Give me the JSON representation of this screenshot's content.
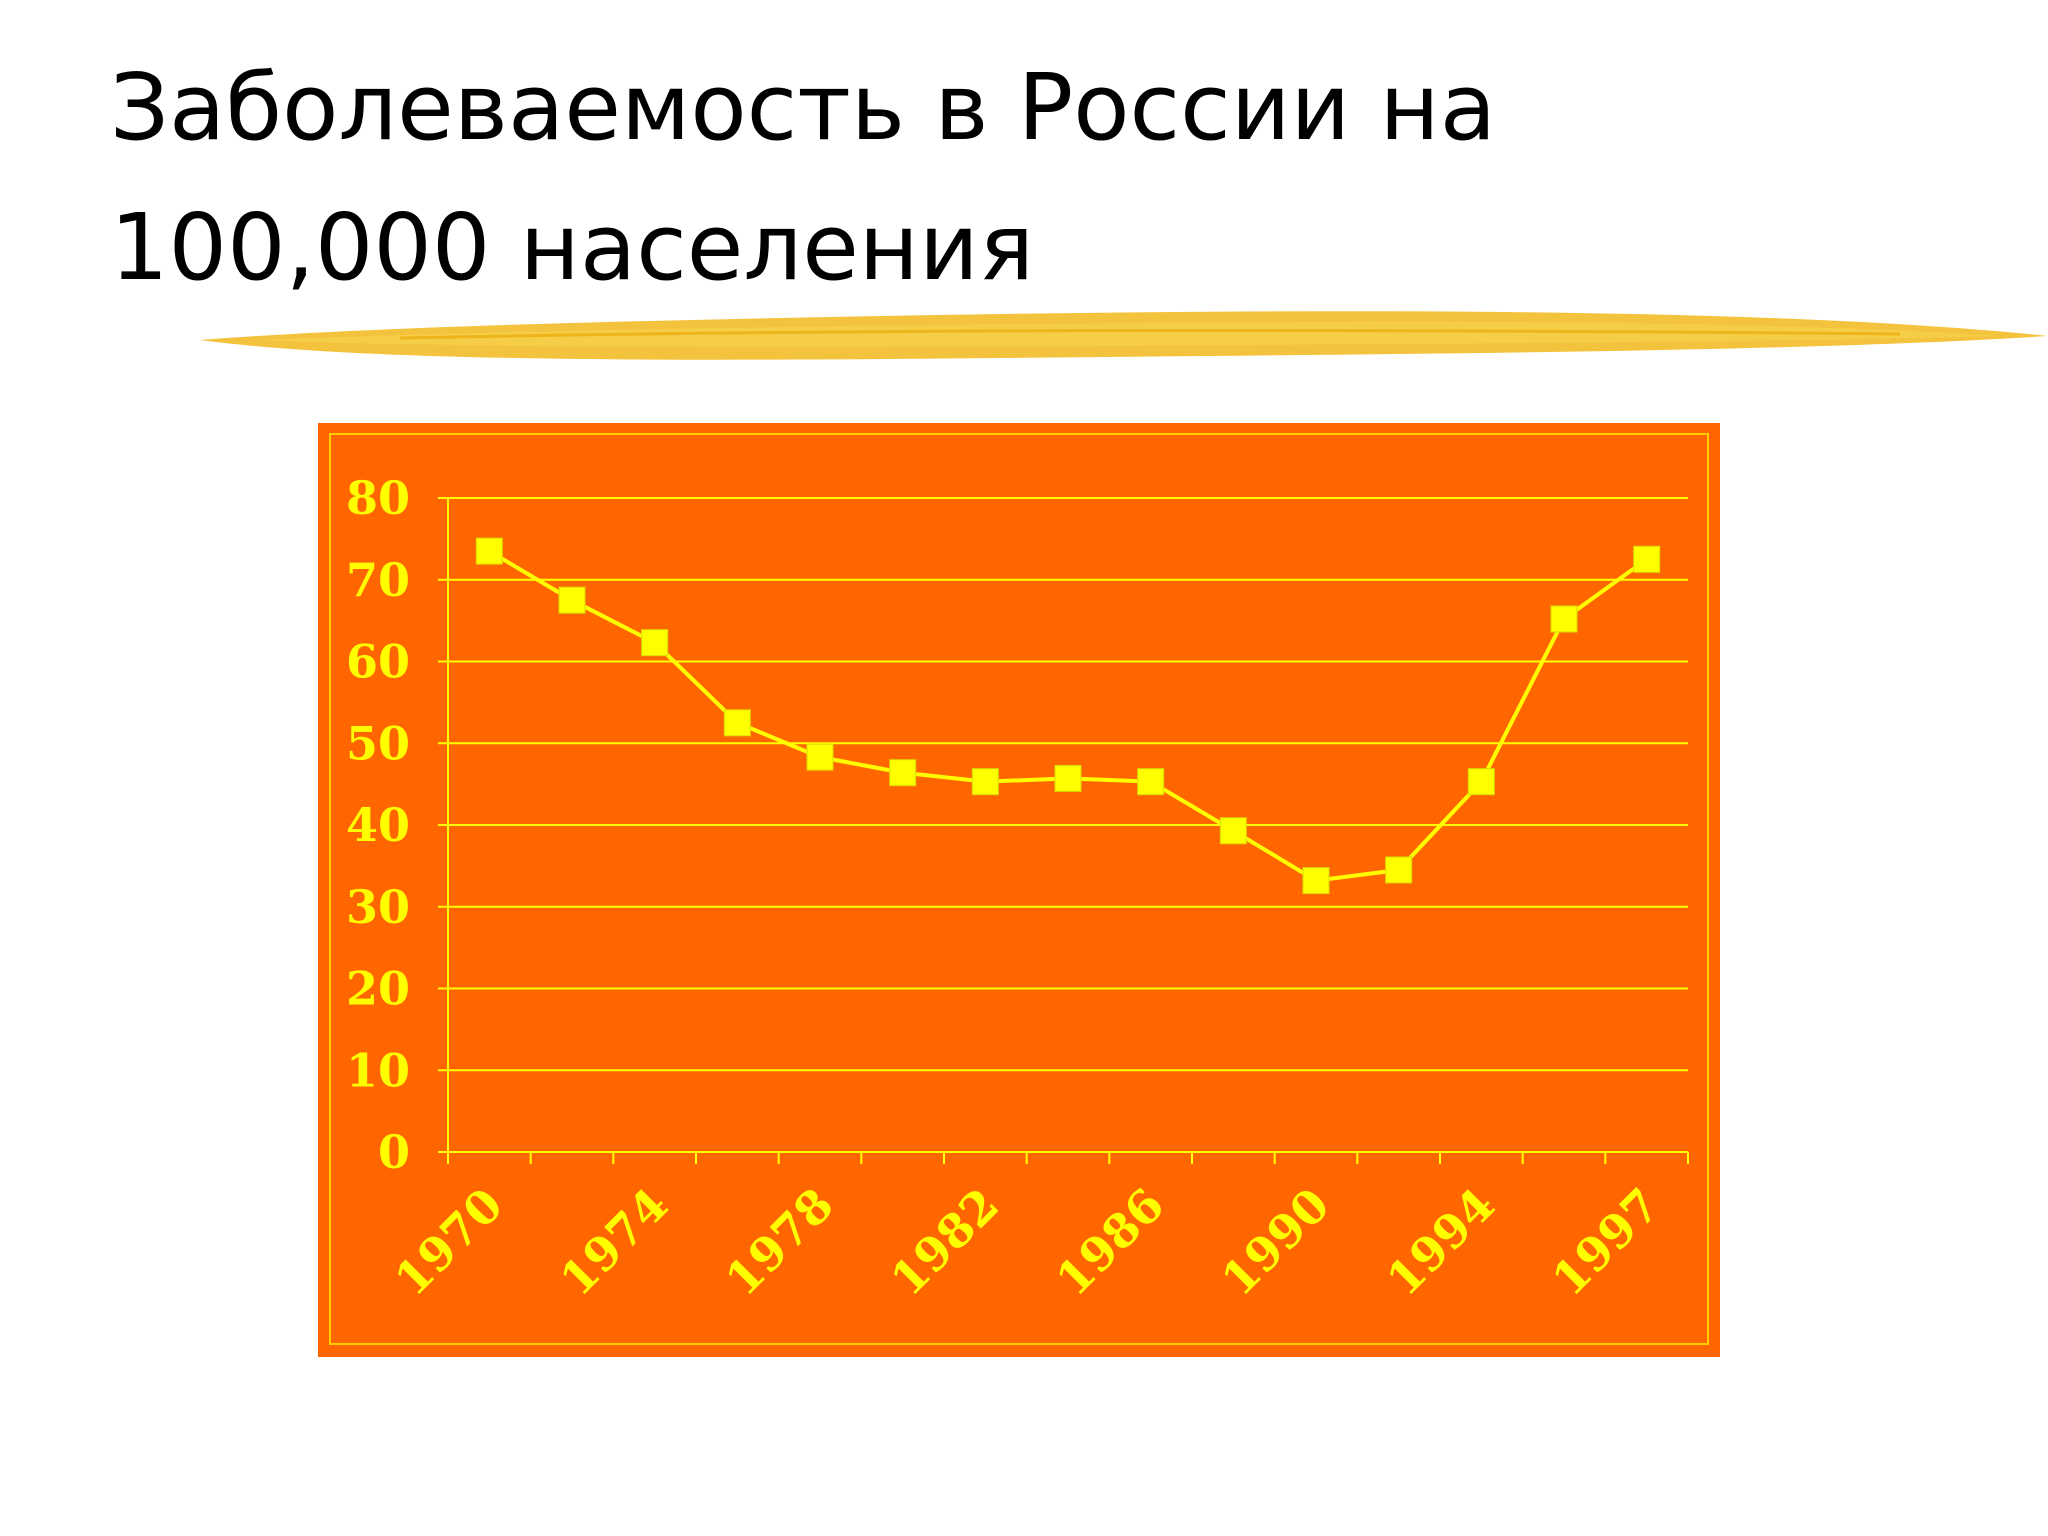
{
  "slide": {
    "title_line1": "Заболеваемость в России на",
    "title_line2": "100,000 населения"
  },
  "colors": {
    "background": "#ffffff",
    "title": "#000000",
    "chart_bg": "#ff6600",
    "chart_accent": "#ffff00",
    "brush": "#f2b81c"
  },
  "chart_data": {
    "type": "line",
    "title": "",
    "xlabel": "",
    "ylabel": "",
    "ylim": [
      0,
      80
    ],
    "yticks": [
      0,
      10,
      20,
      30,
      40,
      50,
      60,
      70,
      80
    ],
    "x_tick_labels": [
      "1970",
      "1974",
      "1978",
      "1982",
      "1986",
      "1990",
      "1994",
      "1997"
    ],
    "x_tick_label_category_index": [
      0,
      2,
      4,
      6,
      8,
      10,
      12,
      14
    ],
    "category_count": 15,
    "grid": true,
    "legend": "none",
    "marker": "square",
    "series": [
      {
        "values": [
          73.5,
          67.5,
          62.3,
          52.5,
          48.3,
          46.4,
          45.3,
          45.7,
          45.3,
          39.3,
          33.2,
          34.5,
          45.3,
          65.2,
          72.5
        ]
      }
    ]
  }
}
